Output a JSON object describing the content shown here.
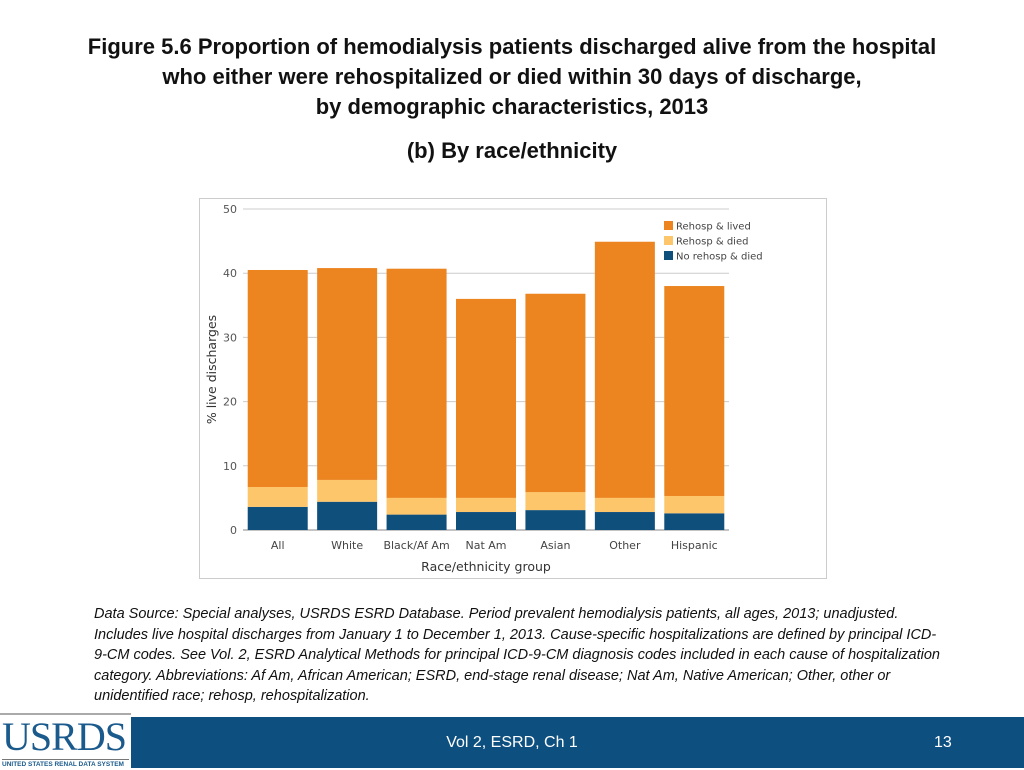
{
  "slide": {
    "title_lines": [
      "Figure 5.6 Proportion of hemodialysis patients discharged alive from the hospital",
      "who either were rehospitalized or died within 30 days of discharge,",
      "by demographic characteristics, 2013"
    ],
    "subtitle": "(b) By race/ethnicity",
    "source_note": "Data Source: Special analyses, USRDS ESRD Database. Period prevalent hemodialysis patients, all ages, 2013; unadjusted. Includes live hospital discharges from January 1 to December 1, 2013. Cause-specific hospitalizations are defined by principal ICD-9-CM codes. See Vol. 2, ESRD Analytical Methods for principal ICD-9-CM diagnosis codes included in each cause of hospitalization category. Abbreviations: Af Am, African American; ESRD, end-stage renal disease; Nat Am, Native American; Other, other or unidentified race; rehosp, rehospitalization.",
    "footer_text": "Vol 2, ESRD, Ch 1",
    "page_number": "13",
    "logo_text": "USRDS",
    "logo_subtext": "UNITED STATES RENAL DATA SYSTEM"
  },
  "chart_data": {
    "type": "bar",
    "stacked": true,
    "categories": [
      "All",
      "White",
      "Black/Af Am",
      "Nat Am",
      "Asian",
      "Other",
      "Hispanic"
    ],
    "series": [
      {
        "name": "No rehosp & died",
        "color": "#0f4f7c",
        "values": [
          3.6,
          4.4,
          2.4,
          2.8,
          3.1,
          2.8,
          2.6
        ]
      },
      {
        "name": "Rehosp & died",
        "color": "#fdc66a",
        "values": [
          3.1,
          3.4,
          2.6,
          2.2,
          2.8,
          2.2,
          2.7
        ]
      },
      {
        "name": "Rehosp & lived",
        "color": "#ec8420",
        "values": [
          33.8,
          33.0,
          35.7,
          31.0,
          30.9,
          39.9,
          32.7
        ]
      }
    ],
    "legend_order": [
      "Rehosp & lived",
      "Rehosp & died",
      "No rehosp & died"
    ],
    "xlabel": "Race/ethnicity group",
    "ylabel": "% live discharges",
    "ylim": [
      0,
      50
    ],
    "yticks": [
      0,
      10,
      20,
      30,
      40,
      50
    ],
    "grid": true,
    "legend_position": "top-right"
  }
}
